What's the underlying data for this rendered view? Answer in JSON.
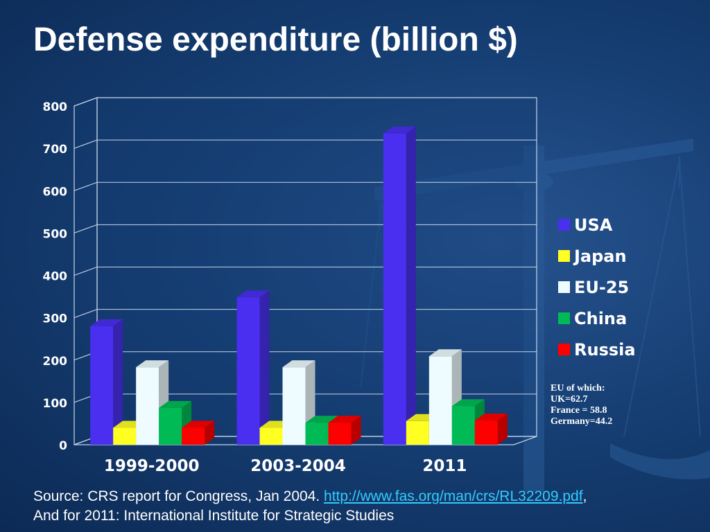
{
  "title": "Defense expenditure (billion $)",
  "chart_data": {
    "type": "bar",
    "categories": [
      "1999-2000",
      "2003-2004",
      "2011"
    ],
    "series": [
      {
        "name": "USA",
        "values": [
          280,
          348,
          735
        ],
        "color": "#4a2ff0"
      },
      {
        "name": "Japan",
        "values": [
          40,
          40,
          56
        ],
        "color": "#ffff22"
      },
      {
        "name": "EU-25",
        "values": [
          183,
          183,
          209
        ],
        "color": "#eefcff"
      },
      {
        "name": "China",
        "values": [
          87,
          52,
          91
        ],
        "color": "#00bb55"
      },
      {
        "name": "Russia",
        "values": [
          40,
          52,
          57
        ],
        "color": "#ff0000"
      }
    ],
    "yticks": [
      "0",
      "100",
      "200",
      "300",
      "400",
      "500",
      "600",
      "700",
      "800"
    ],
    "ylim": [
      0,
      800
    ],
    "grid": true,
    "legend_position": "right"
  },
  "eu_note": [
    "EU of which:",
    "UK=62.7",
    "France = 58.8",
    "Germany=44.2"
  ],
  "source": {
    "line1_prefix": "Source: CRS report for Congress, Jan 2004. ",
    "link_text": "http://www.fas.org/man/crs/RL32209.pdf",
    "line1_suffix": ",",
    "line2": "And for 2011: International Institute for Strategic Studies"
  }
}
